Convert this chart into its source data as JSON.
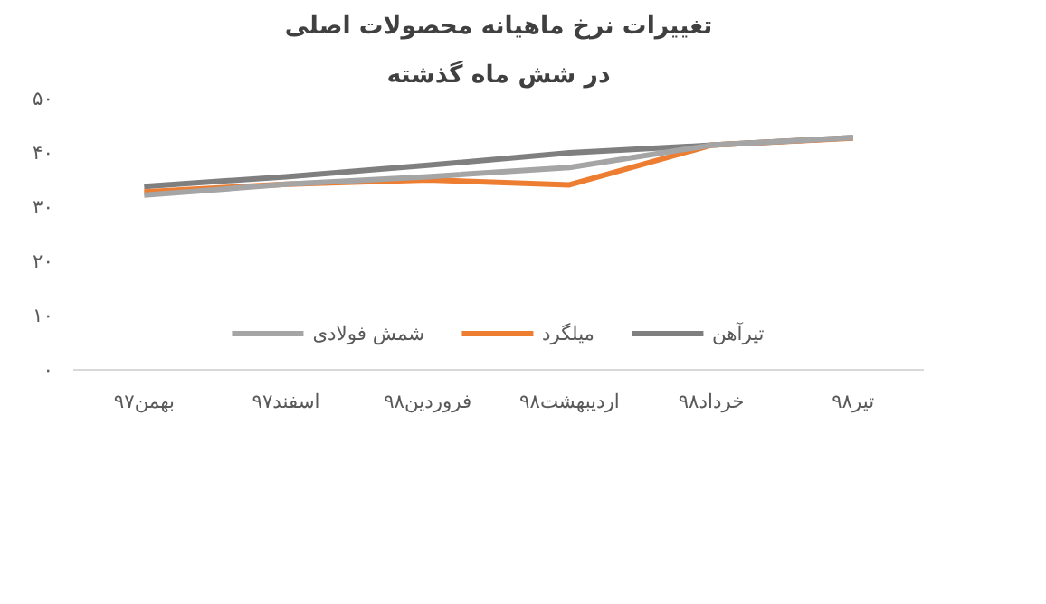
{
  "chart_data": {
    "type": "line",
    "title": "تغییرات نرخ ماهیانه محصولات اصلی",
    "subtitle": "در شش ماه گذشته",
    "categories": [
      "بهمن۹۷",
      "اسفند۹۷",
      "فروردین۹۸",
      "اردیبهشت۹۸",
      "خرداد۹۸",
      "تیر۹۸"
    ],
    "series": [
      {
        "name": "تیرآهن",
        "color": "#7f7f7f",
        "values": [
          33.8,
          35.6,
          37.7,
          40.0,
          41.4,
          42.8
        ]
      },
      {
        "name": "میلگرد",
        "color": "#ed7d31",
        "values": [
          32.8,
          34.2,
          35.0,
          34.1,
          41.4,
          42.7
        ]
      },
      {
        "name": "شمش فولادی",
        "color": "#a5a5a5",
        "values": [
          32.2,
          34.2,
          35.6,
          37.3,
          41.4,
          42.8
        ]
      }
    ],
    "ylim": [
      0,
      50
    ],
    "yticks": [
      {
        "value": 0,
        "label": "۰"
      },
      {
        "value": 10,
        "label": "۱۰"
      },
      {
        "value": 20,
        "label": "۲۰"
      },
      {
        "value": 30,
        "label": "۳۰"
      },
      {
        "value": 40,
        "label": "۴۰"
      },
      {
        "value": 50,
        "label": "۵۰"
      }
    ],
    "grid": false,
    "legend": "bottom",
    "marker": "none",
    "line_style": "solid"
  }
}
